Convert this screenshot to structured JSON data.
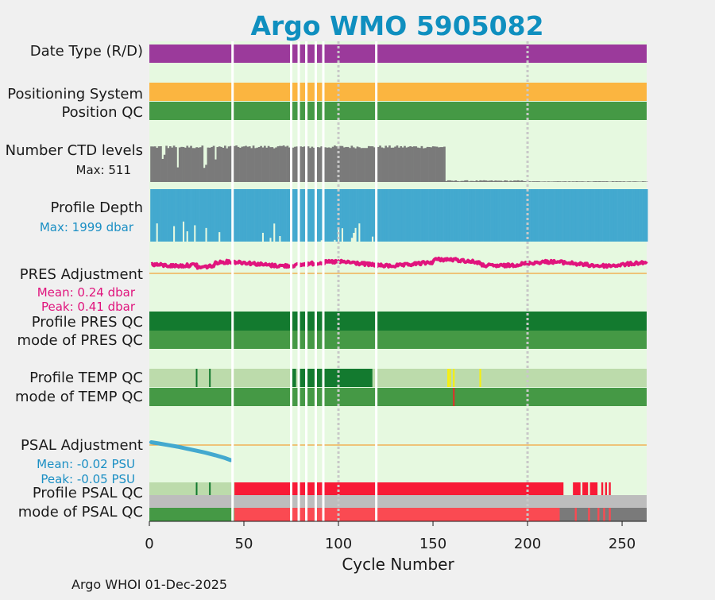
{
  "title": "Argo WMO 5905082",
  "footer": "Argo WHOI 01-Dec-2025",
  "colors": {
    "background": "#f0f0f0",
    "plot_bg": "#e6f9e0",
    "title": "#0f8fbf",
    "date_type": "#9b3a9b",
    "positioning": "#fbb540",
    "qc_good": "#459945",
    "qc_dark": "#137a2f",
    "qc_light": "#bcdbab",
    "qc_bad": "#f81a36",
    "qc_bad_mode": "#fa4a52",
    "qc_grey": "#bdbdbd",
    "qc_darkgrey": "#7a7a7a",
    "ctd": "#7a7a7a",
    "depth": "#43a9cf",
    "pres_adj": "#e0147d",
    "psal_adj": "#43a9cf",
    "ref_line": "#f2a33a",
    "qc_yellow": "#f5ef14",
    "qc_red": "#d9342b",
    "gap": "#ffffff",
    "dotted": "#c8c8c8",
    "magenta_text": "#e0147d",
    "blue_text": "#1b8fc4",
    "black_text": "#1a1a1a"
  },
  "chart_data": {
    "type": "timeline",
    "xlabel": "Cycle Number",
    "xlim": [
      0,
      263
    ],
    "xticks": [
      0,
      50,
      100,
      150,
      200,
      250
    ],
    "gap_cycles": [
      44,
      75,
      79,
      83,
      88,
      92,
      120
    ],
    "reference_cycles": [
      100,
      200
    ],
    "rows": {
      "date_type": {
        "label": "Date Type (R/D)"
      },
      "positioning": {
        "label": "Positioning System"
      },
      "position_qc": {
        "label": "Position QC"
      },
      "ctd": {
        "label": "Number CTD levels",
        "annotation": "Max: 511",
        "max": 511
      },
      "depth": {
        "label": "Profile Depth",
        "annotation": "Max: 1999 dbar",
        "max": 1999
      },
      "pres_adj": {
        "label": "PRES Adjustment",
        "mean": "Mean: 0.24 dbar",
        "peak": "Peak: 0.41 dbar"
      },
      "pres_qc": {
        "label": "Profile PRES QC"
      },
      "pres_mode": {
        "label": "mode of PRES QC"
      },
      "temp_qc": {
        "label": "Profile TEMP QC"
      },
      "temp_mode": {
        "label": "mode of TEMP QC"
      },
      "psal_adj": {
        "label": "PSAL Adjustment",
        "mean": "Mean: -0.02 PSU",
        "peak": "Peak: -0.05 PSU"
      },
      "psal_qc": {
        "label": "Profile PSAL QC"
      },
      "psal_mode": {
        "label": "mode of PSAL QC"
      }
    },
    "pres_qc_segments": [
      {
        "start": 0,
        "end": 263,
        "class": "qc_dark"
      }
    ],
    "temp_qc_segments": [
      {
        "start": 0,
        "end": 75,
        "class": "qc_light"
      },
      {
        "start": 75,
        "end": 118,
        "class": "qc_dark"
      },
      {
        "start": 118,
        "end": 263,
        "class": "qc_light"
      }
    ],
    "temp_qc_ticks": [
      {
        "cycle": 25,
        "class": "qc_dark"
      },
      {
        "cycle": 32,
        "class": "qc_dark"
      },
      {
        "cycle": 78,
        "class": "qc_light"
      },
      {
        "cycle": 158,
        "class": "qc_yellow"
      },
      {
        "cycle": 159,
        "class": "qc_yellow"
      },
      {
        "cycle": 161,
        "class": "qc_yellow"
      },
      {
        "cycle": 175,
        "class": "qc_yellow"
      }
    ],
    "temp_mode_ticks": [
      {
        "cycle": 161,
        "class": "qc_red"
      }
    ],
    "psal_qc_segments": [
      {
        "start": 0,
        "end": 45,
        "class": "qc_light"
      },
      {
        "start": 45,
        "end": 219,
        "class": "qc_bad"
      },
      {
        "start": 224,
        "end": 228,
        "class": "qc_bad"
      },
      {
        "start": 229,
        "end": 232,
        "class": "qc_bad"
      },
      {
        "start": 233,
        "end": 237,
        "class": "qc_bad"
      },
      {
        "start": 239,
        "end": 240,
        "class": "qc_bad"
      },
      {
        "start": 241,
        "end": 242,
        "class": "qc_bad"
      },
      {
        "start": 243,
        "end": 244,
        "class": "qc_bad"
      }
    ],
    "psal_qc_ticks": [
      {
        "cycle": 25,
        "class": "qc_dark"
      },
      {
        "cycle": 32,
        "class": "qc_dark"
      }
    ],
    "psal_mode_segments": [
      {
        "start": 0,
        "end": 45,
        "class": "qc_good"
      },
      {
        "start": 45,
        "end": 217,
        "class": "qc_bad_mode"
      },
      {
        "start": 217,
        "end": 263,
        "class": "qc_darkgrey"
      },
      {
        "start": 225,
        "end": 226,
        "class": "qc_bad_mode"
      },
      {
        "start": 232,
        "end": 233,
        "class": "qc_bad_mode"
      },
      {
        "start": 237,
        "end": 238,
        "class": "qc_bad_mode"
      },
      {
        "start": 240,
        "end": 241,
        "class": "qc_bad_mode"
      },
      {
        "start": 243,
        "end": 244,
        "class": "qc_bad_mode"
      }
    ],
    "psal_adj_series": {
      "cycles": [
        1,
        5,
        10,
        15,
        20,
        25,
        30,
        35,
        40,
        43
      ],
      "values": [
        -0.001,
        -0.004,
        -0.008,
        -0.012,
        -0.017,
        -0.022,
        -0.027,
        -0.033,
        -0.04,
        -0.045
      ]
    },
    "ctd_levels_note": "full cycles 1-156 near 400-511 with dropouts; cycles 157-263 near 5-25"
  }
}
